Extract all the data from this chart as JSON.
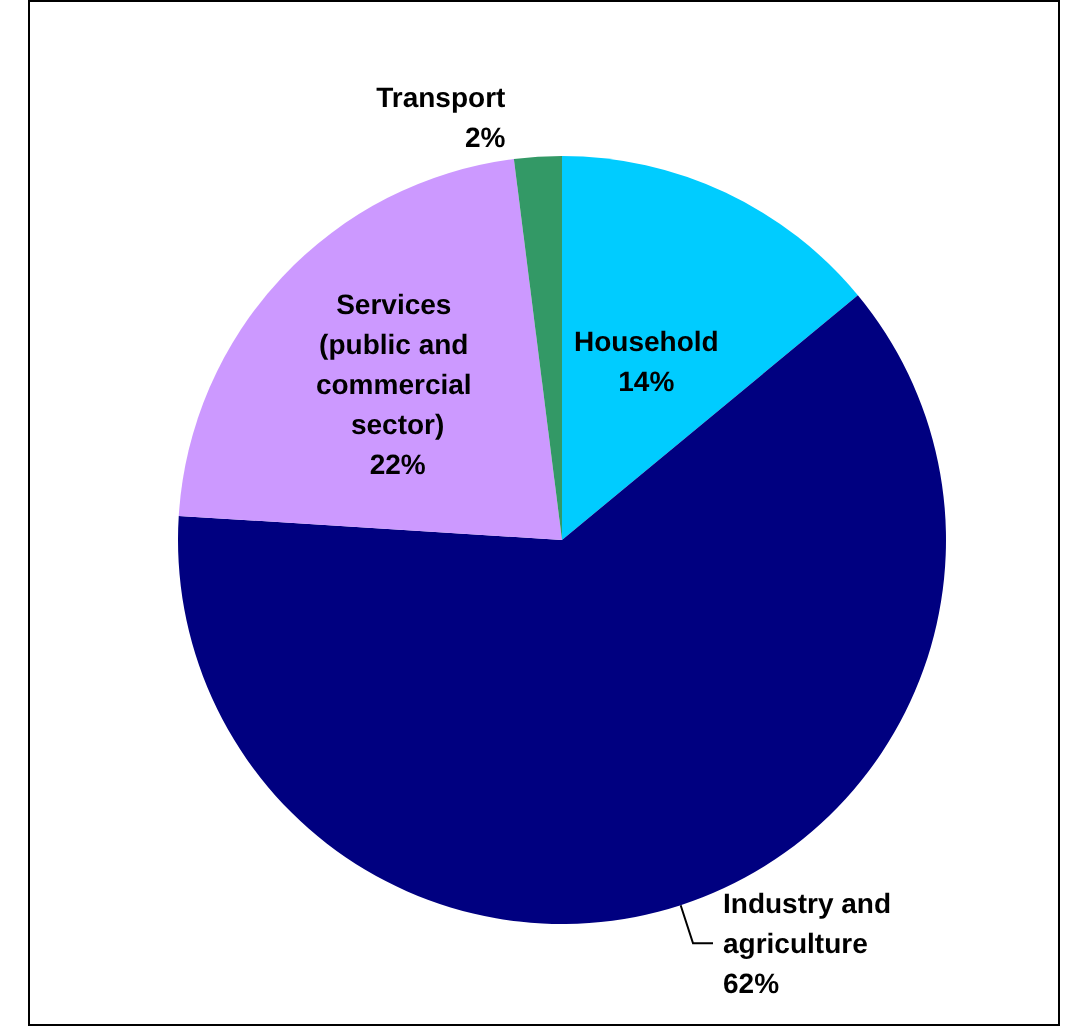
{
  "chart_data": {
    "type": "pie",
    "categories": [
      "Household",
      "Industry and agriculture",
      "Services (public and commercial sector)",
      "Transport"
    ],
    "values": [
      14,
      62,
      22,
      2
    ],
    "colors": [
      "#00ccff",
      "#000080",
      "#cc99ff",
      "#339966"
    ],
    "value_labels": [
      "14%",
      "62%",
      "22%",
      "2%"
    ],
    "legend": false
  }
}
